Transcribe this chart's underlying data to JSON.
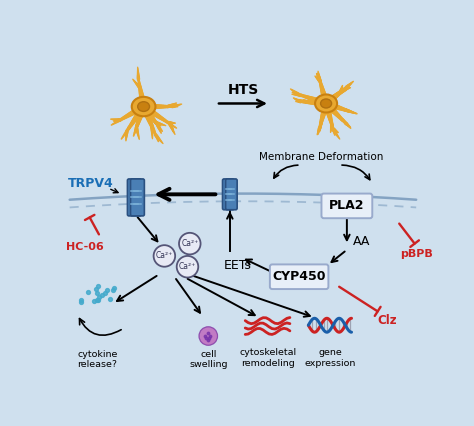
{
  "bg_color": "#cfe0ee",
  "channel_color": "#4a7fb5",
  "channel_dark": "#2a5080",
  "channel_light": "#7ab0d8",
  "inhibit_color": "#cc2222",
  "ca_fc": "#e8eaf5",
  "ca_ec": "#555577",
  "box_fc": "#e8eff8",
  "box_ec": "#99aacc",
  "trpv4_color": "#1a6eb5",
  "neuron_color": "#e8a830",
  "neuron_body": "#c88010",
  "neuron_nuc": "#b07010",
  "dots_color": "#44aacc",
  "membrane_color": "#7799bb",
  "trpv4_label": "TRPV4",
  "hts_label": "HTS",
  "membrane_label": "Membrane Deformation",
  "pla2_label": "PLA2",
  "aa_label": "AA",
  "eets_label": "EETs",
  "cyp450_label": "CYP450",
  "hc06_label": "HC-06",
  "pbpb_label": "pBPB",
  "clz_label": "Clz",
  "ca_label": "Ca²⁺",
  "cytokine_label": "cytokine\nrelease?",
  "swelling_label": "cell\nswelling",
  "cytoskel_label": "cytoskeletal\nremodeling",
  "gene_label": "gene\nexpression"
}
